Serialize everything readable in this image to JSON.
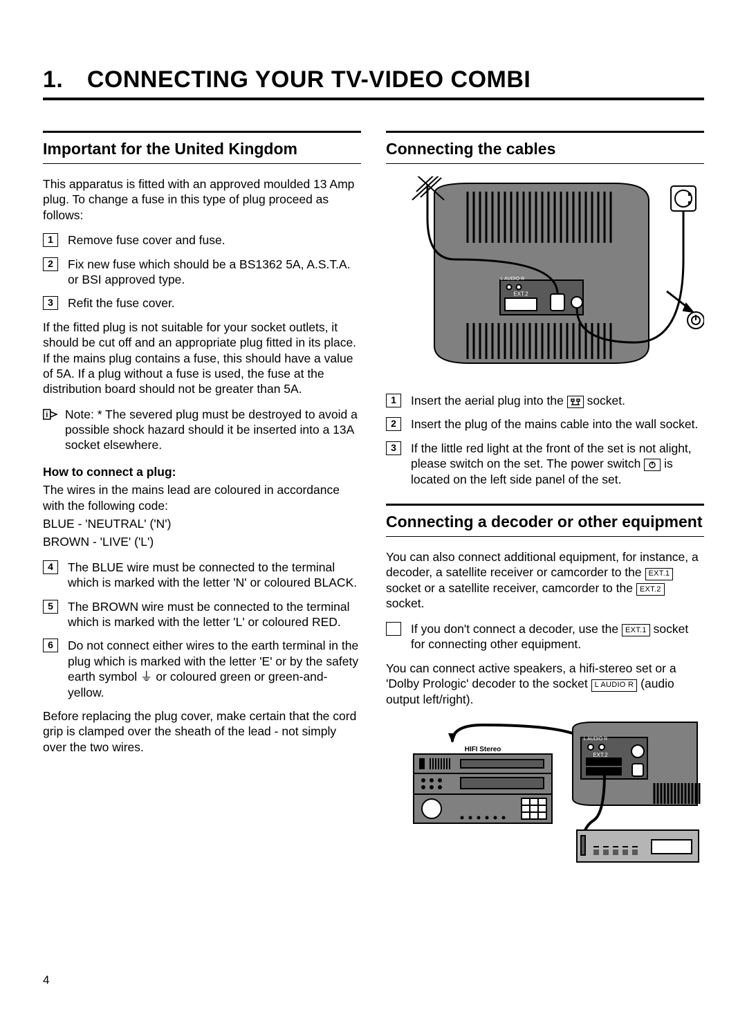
{
  "page": {
    "number": "4",
    "title": "1. CONNECTING YOUR TV-VIDEO COMBI"
  },
  "left": {
    "heading": "Important for the United Kingdom",
    "intro": "This apparatus is fitted with an approved moulded 13 Amp plug. To change a fuse in this type of plug proceed as follows:",
    "steps1": [
      "Remove fuse cover and fuse.",
      "Fix new fuse which should be a BS1362 5A, A.S.T.A. or BSI approved type.",
      "Refit the fuse cover."
    ],
    "para2": "If the fitted plug is not suitable for your socket outlets, it should be cut off and an appropriate plug fitted in its place.\nIf the mains plug contains a fuse, this should have a value of 5A. If a plug without a fuse is used, the fuse at the distribution board should not be greater than 5A.",
    "note": "Note: * The severed plug must be destroyed to avoid a possible shock hazard should it be inserted into a 13A socket elsewhere.",
    "howto_title": "How to connect a plug:",
    "howto_intro": "The wires in the mains lead are coloured in accordance with the following code:",
    "code_blue": "BLUE - 'NEUTRAL' ('N')",
    "code_brown": "BROWN - 'LIVE' ('L')",
    "steps2_start": 4,
    "steps2": [
      "The BLUE wire must be connected to the terminal which is marked with the letter 'N' or coloured BLACK.",
      "The BROWN wire must be connected to the terminal which is marked with the letter 'L' or coloured RED.",
      "Do not connect either wires to the earth terminal in the plug which is marked with the letter 'E' or by the safety earth symbol ⏚ or coloured green or green-and-yellow."
    ],
    "closing": "Before replacing the plug cover, make certain that the cord grip is clamped over the sheath of the lead - not simply over the two wires."
  },
  "right": {
    "heading1": "Connecting the cables",
    "fig1": {
      "labels": {
        "audio": "L AUDIO R",
        "ext2": "EXT.2"
      },
      "colors": {
        "body": "#808080",
        "dark": "#595959",
        "stroke": "#000000",
        "bg": "#ffffff"
      }
    },
    "steps1": [
      {
        "pre": "Insert the aerial plug into the ",
        "box_icon": "aerial",
        "post": " socket."
      },
      {
        "pre": "Insert the plug of the mains cable into the wall socket.",
        "box_icon": null,
        "post": ""
      },
      {
        "pre": "If the little red light at the front of the set is not alight, please switch on the set. The power switch ",
        "box_icon": "power",
        "post": " is located on the left side panel of the set."
      }
    ],
    "heading2": "Connecting a decoder or other equipment",
    "para1_pre": "You can also connect additional equipment, for instance, a decoder, a satellite receiver or camcorder to the ",
    "para1_box1": "EXT.1",
    "para1_mid": " socket or a satellite receiver, camcorder to the ",
    "para1_box2": "EXT.2",
    "para1_post": " socket.",
    "bullet_pre": "If you don't connect a decoder, use the ",
    "bullet_box": "EXT.1",
    "bullet_post": " socket for connecting other equipment.",
    "para2_pre": "You can connect active speakers, a hifi-stereo set or a 'Dolby Prologic' decoder to the socket ",
    "para2_box": "L AUDIO R",
    "para2_post": " (audio output left/right).",
    "fig2": {
      "labels": {
        "hifi": "HIFI Stereo",
        "audio": "L AUDIO R",
        "ext2": "EXT.2"
      },
      "colors": {
        "body": "#808080",
        "dark": "#595959",
        "light": "#b5b5b5",
        "stroke": "#000000",
        "bg": "#ffffff"
      }
    }
  }
}
